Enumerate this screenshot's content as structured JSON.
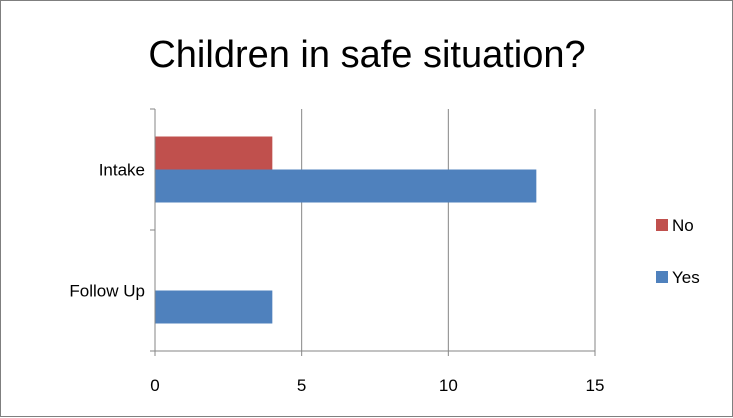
{
  "chart_data": {
    "type": "bar",
    "orientation": "horizontal",
    "title": "Children in safe situation?",
    "categories": [
      "Intake",
      "Follow Up"
    ],
    "series": [
      {
        "name": "No",
        "values": [
          4,
          0
        ],
        "color": "#c0504d"
      },
      {
        "name": "Yes",
        "values": [
          13,
          4
        ],
        "color": "#4f81bd"
      }
    ],
    "xlim": [
      0,
      15
    ],
    "xticks": [
      0,
      5,
      10,
      15
    ],
    "xlabel": "",
    "ylabel": "",
    "grid": "vertical",
    "legend_position": "right"
  }
}
